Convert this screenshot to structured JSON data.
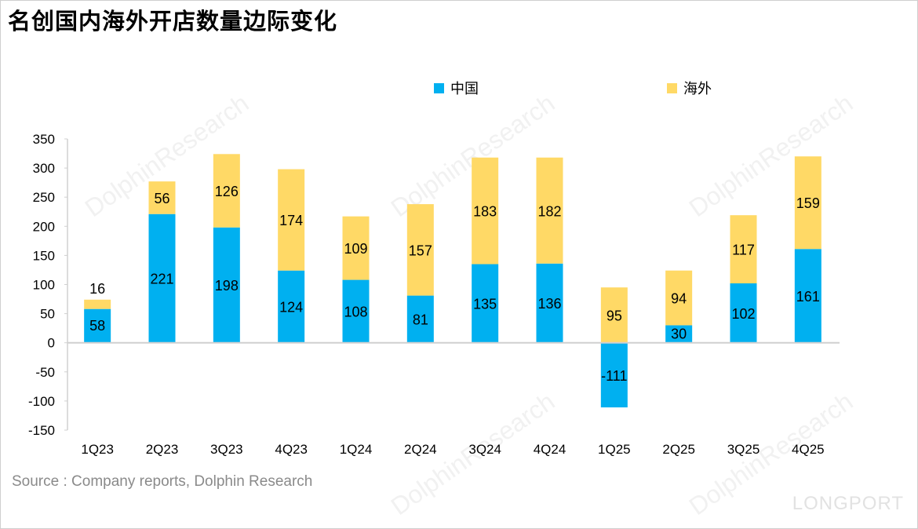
{
  "title": "名创国内海外开店数量边际变化",
  "source": "Source : Company reports, Dolphin Research",
  "brand": "LONGPORT",
  "watermark": "DolphinResearch",
  "chart_data": {
    "type": "bar",
    "stacked": true,
    "categories": [
      "1Q23",
      "2Q23",
      "3Q23",
      "4Q23",
      "1Q24",
      "2Q24",
      "3Q24",
      "4Q24",
      "1Q25",
      "2Q25",
      "3Q25",
      "4Q25"
    ],
    "series": [
      {
        "name": "中国",
        "color": "#00B0F0",
        "values": [
          58,
          221,
          198,
          124,
          108,
          81,
          135,
          136,
          -111,
          30,
          102,
          161
        ]
      },
      {
        "name": "海外",
        "color": "#FFD966",
        "values": [
          16,
          56,
          126,
          174,
          109,
          157,
          183,
          182,
          95,
          94,
          117,
          159
        ]
      }
    ],
    "ylim": [
      -150,
      350
    ],
    "yticks": [
      -150,
      -100,
      -50,
      0,
      50,
      100,
      150,
      200,
      250,
      300,
      350
    ],
    "legend": "top",
    "grid": false,
    "data_labels": true
  }
}
